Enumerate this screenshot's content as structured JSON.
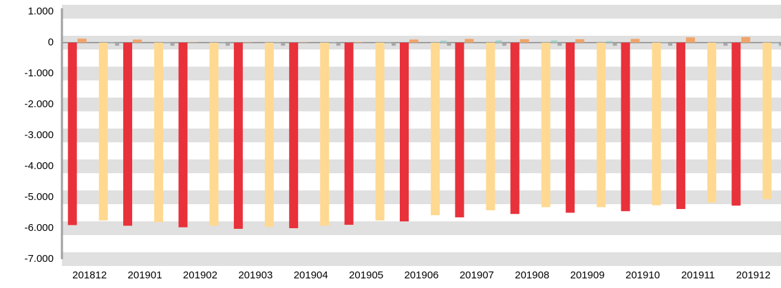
{
  "chart_data": {
    "type": "bar",
    "categories": [
      "201812",
      "201901",
      "201902",
      "201903",
      "201904",
      "201905",
      "201906",
      "201907",
      "201908",
      "201909",
      "201910",
      "201911",
      "201912"
    ],
    "series": [
      {
        "color": "#e8313a",
        "values": [
          -5900,
          -5920,
          -5970,
          -6020,
          -6000,
          -5890,
          -5780,
          -5650,
          -5540,
          -5500,
          -5450,
          -5380,
          -5270
        ]
      },
      {
        "color": "#f0a46a",
        "values": [
          130,
          100,
          10,
          10,
          10,
          20,
          100,
          120,
          110,
          110,
          120,
          170,
          180
        ]
      },
      {
        "color": "#ffd991",
        "values": [
          -5750,
          -5800,
          -5920,
          -5960,
          -5920,
          -5750,
          -5580,
          -5420,
          -5320,
          -5320,
          -5260,
          -5170,
          -5060
        ]
      },
      {
        "color": "#9fcfc4",
        "values": [
          10,
          10,
          10,
          10,
          10,
          10,
          60,
          70,
          70,
          50,
          10,
          10,
          10
        ]
      },
      {
        "color": "#a6a6a6",
        "values": [
          -100,
          -100,
          -100,
          -100,
          -100,
          -100,
          -100,
          -100,
          -100,
          -100,
          -100,
          -100,
          -100
        ]
      }
    ],
    "ylim": [
      -7000,
      1000
    ],
    "yticks": [
      {
        "value": 1000,
        "label": "1.000"
      },
      0,
      {
        "value": -1000,
        "label": "-1.000"
      },
      {
        "value": -2000,
        "label": "-2.000"
      },
      {
        "value": -3000,
        "label": "-3.000"
      },
      {
        "value": -4000,
        "label": "-4.000"
      },
      {
        "value": -5000,
        "label": "-5.000"
      },
      {
        "value": -6000,
        "label": "-6.000"
      },
      {
        "value": -7000,
        "label": "-7.000"
      }
    ],
    "grid": true
  }
}
